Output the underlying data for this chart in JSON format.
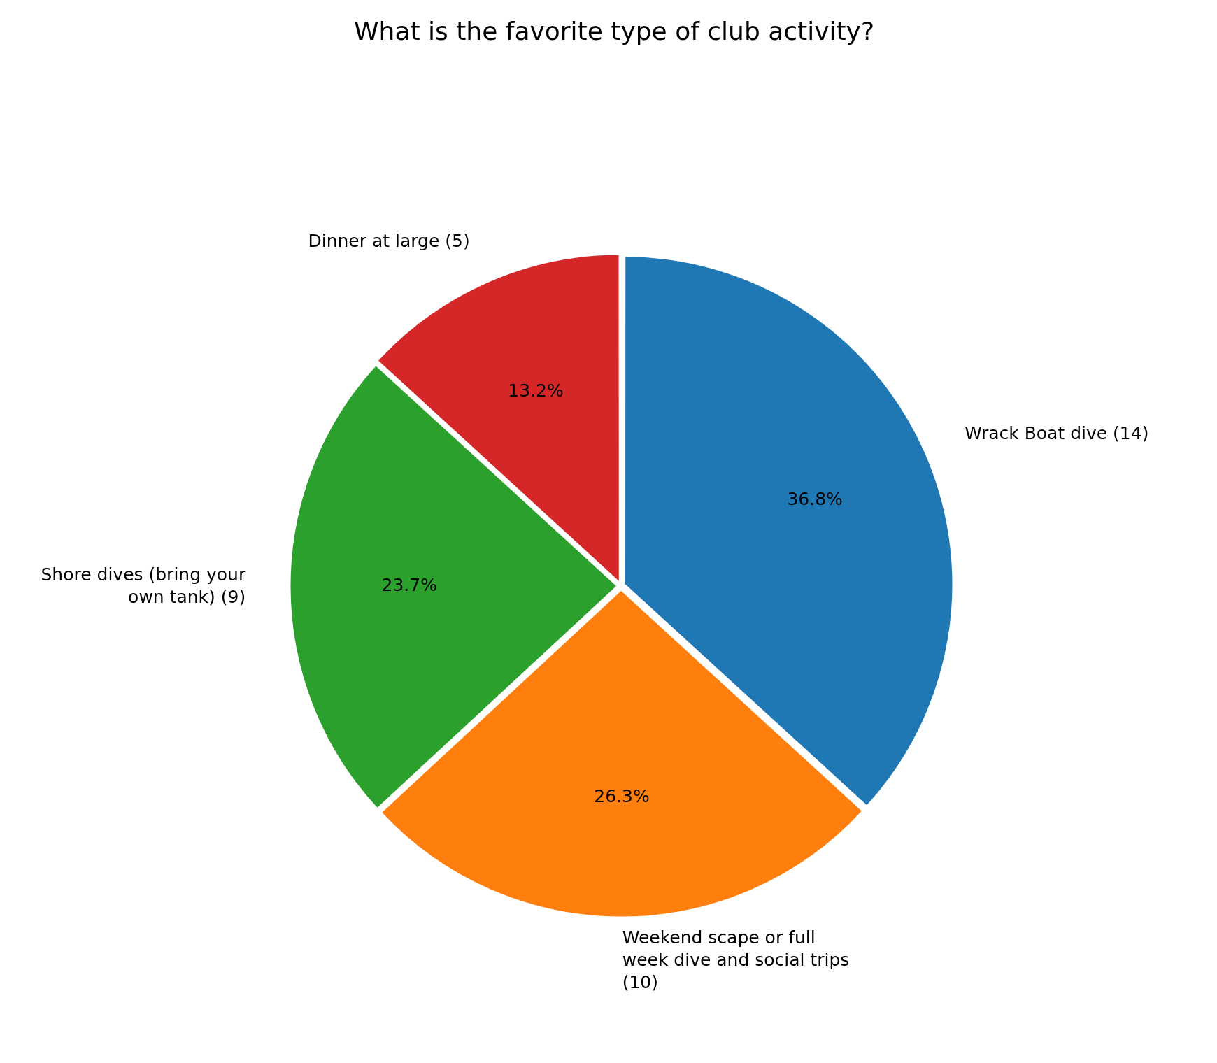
{
  "chart_data": {
    "type": "pie",
    "title": "What is the favorite type of club activity?",
    "categories": [
      "Wrack Boat dive (14)",
      "Weekend scape or full week dive and social trips (10)",
      "Shore dives (bring your own tank) (9)",
      "Dinner at large (5)"
    ],
    "values": [
      36.8,
      26.3,
      23.7,
      13.2
    ],
    "colors": [
      "#1f77b4",
      "#ff7f0e",
      "#2ca02c",
      "#d62728"
    ],
    "value_labels": [
      "36.8%",
      "26.3%",
      "23.7%",
      "13.2%"
    ],
    "legend": false
  }
}
